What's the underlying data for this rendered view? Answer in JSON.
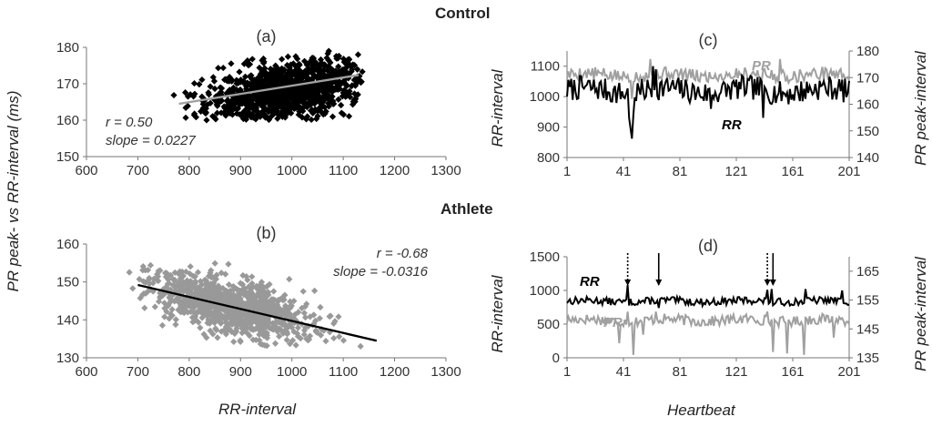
{
  "figure": {
    "control_title": "Control",
    "athlete_title": "Athlete",
    "left_ylabel": "PR peak-  vs  RR-interval (ms)",
    "left_xlabel": "RR-interval",
    "right_xlabel": "Heartbeat",
    "right_ylabel_left": "RR-interval",
    "right_ylabel_right": "PR peak-interval"
  },
  "chart_data": [
    {
      "id": "a",
      "panel_label": "(a)",
      "type": "scatter",
      "xlim": [
        600,
        1300
      ],
      "ylim": [
        150,
        180
      ],
      "xticks": [
        600,
        700,
        800,
        900,
        1000,
        1100,
        1200,
        1300
      ],
      "yticks": [
        150,
        160,
        170,
        180
      ],
      "marker_color": "#000000",
      "trend_color": "#a0a0a0",
      "trend": {
        "x": [
          780,
          1130
        ],
        "y": [
          164.5,
          172.4
        ]
      },
      "cloud": {
        "center_x": 990,
        "sd_x": 78,
        "x_range": [
          770,
          1140
        ],
        "center_y": 168,
        "sd_y": 4.0,
        "y_range": [
          160,
          179
        ],
        "slope": 0.0227,
        "n": 1100,
        "seed": 11
      },
      "annotation_r": "r = 0.50",
      "annotation_slope": "slope = 0.0227"
    },
    {
      "id": "b",
      "panel_label": "(b)",
      "type": "scatter",
      "xlim": [
        600,
        1300
      ],
      "ylim": [
        130,
        160
      ],
      "xticks": [
        600,
        700,
        800,
        900,
        1000,
        1100,
        1200,
        1300
      ],
      "yticks": [
        130,
        140,
        150,
        160
      ],
      "marker_color": "#999999",
      "trend_color": "#000000",
      "trend": {
        "x": [
          700,
          1165
        ],
        "y": [
          149.2,
          134.5
        ]
      },
      "cloud": {
        "center_x": 880,
        "sd_x": 80,
        "x_range": [
          680,
          1170
        ],
        "center_y": 143.5,
        "sd_y": 3.6,
        "y_range": [
          133,
          155
        ],
        "slope": -0.0316,
        "n": 1000,
        "seed": 23
      },
      "annotation_r": "r = -0.68",
      "annotation_slope": "slope = -0.0316"
    },
    {
      "id": "c",
      "panel_label": "(c)",
      "type": "line",
      "xlim": [
        1,
        201
      ],
      "xticks": [
        1,
        41,
        81,
        121,
        161,
        201
      ],
      "y_left": {
        "lim": [
          800,
          1150
        ],
        "ticks": [
          800,
          900,
          1000,
          1100
        ]
      },
      "y_right": {
        "lim": [
          140,
          180
        ],
        "ticks": [
          140,
          150,
          160,
          170,
          180
        ]
      },
      "series": [
        {
          "name": "PR",
          "axis": "right",
          "color": "#a0a0a0",
          "base": 171,
          "amp": 2.5,
          "seed": 5,
          "events": [
            {
              "x": 47,
              "y": 162
            },
            {
              "x": 60,
              "y": 177
            },
            {
              "x": 63,
              "y": 172
            },
            {
              "x": 150,
              "y": 170
            },
            {
              "x": 152,
              "y": 177
            }
          ]
        },
        {
          "name": "RR",
          "axis": "left",
          "color": "#000000",
          "base": 1020,
          "amp": 40,
          "seed": 7,
          "events": [
            {
              "x": 45,
              "y": 930
            },
            {
              "x": 46,
              "y": 895
            },
            {
              "x": 47,
              "y": 862
            },
            {
              "x": 48,
              "y": 940
            },
            {
              "x": 62,
              "y": 1100
            },
            {
              "x": 64,
              "y": 1090
            },
            {
              "x": 103,
              "y": 960
            },
            {
              "x": 140,
              "y": 930
            }
          ]
        }
      ]
    },
    {
      "id": "d",
      "panel_label": "(d)",
      "type": "line",
      "xlim": [
        1,
        201
      ],
      "xticks": [
        1,
        41,
        81,
        121,
        161,
        201
      ],
      "y_left": {
        "lim": [
          0,
          1500
        ],
        "ticks": [
          0,
          500,
          1000,
          1500
        ]
      },
      "y_right": {
        "lim": [
          135,
          170
        ],
        "ticks": [
          135,
          145,
          155,
          165
        ]
      },
      "series": [
        {
          "name": "RR",
          "axis": "left",
          "color": "#000000",
          "base": 840,
          "amp": 55,
          "seed": 13,
          "events": [
            {
              "x": 44,
              "y": 1080
            },
            {
              "x": 66,
              "y": 740
            },
            {
              "x": 143,
              "y": 1010
            },
            {
              "x": 146,
              "y": 1020
            },
            {
              "x": 147,
              "y": 780
            },
            {
              "x": 170,
              "y": 1020
            },
            {
              "x": 196,
              "y": 1000
            }
          ]
        },
        {
          "name": "PR",
          "axis": "right",
          "color": "#a0a0a0",
          "base": 148,
          "amp": 1.8,
          "seed": 17,
          "events": [
            {
              "x": 38,
              "y": 140
            },
            {
              "x": 44,
              "y": 151
            },
            {
              "x": 48,
              "y": 136
            },
            {
              "x": 55,
              "y": 143
            },
            {
              "x": 64,
              "y": 151
            },
            {
              "x": 143,
              "y": 151
            },
            {
              "x": 147,
              "y": 137
            },
            {
              "x": 157,
              "y": 136.5
            },
            {
              "x": 169,
              "y": 136
            },
            {
              "x": 190,
              "y": 142
            }
          ]
        }
      ],
      "markers": [
        {
          "x": 44,
          "style": "dotted"
        },
        {
          "x": 66,
          "style": "solid"
        },
        {
          "x": 143,
          "style": "dotted"
        },
        {
          "x": 147,
          "style": "solid"
        }
      ]
    }
  ]
}
